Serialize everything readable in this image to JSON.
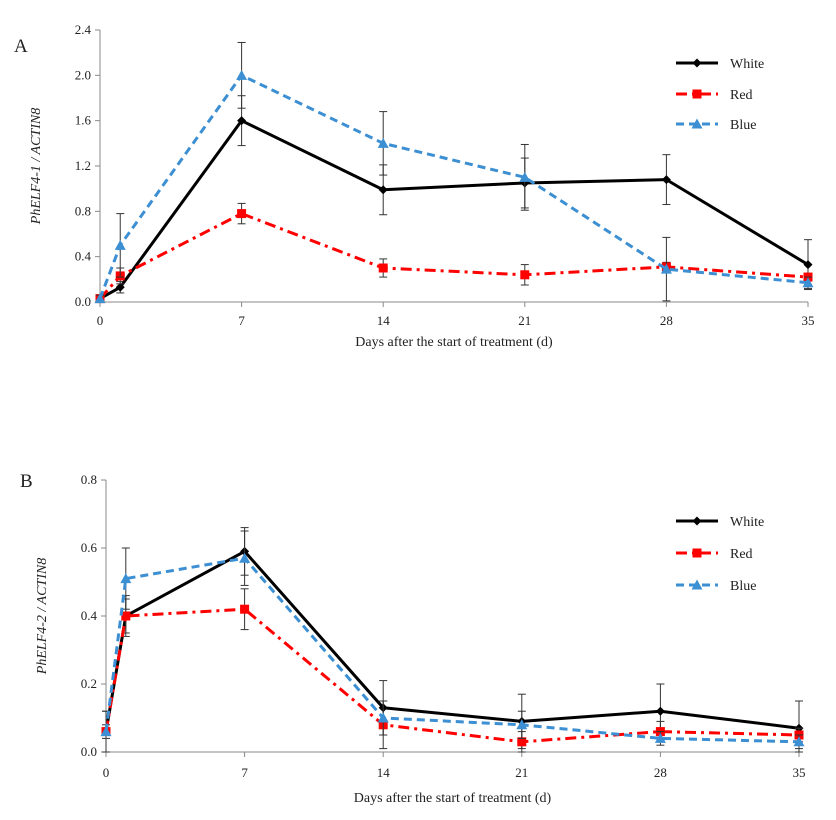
{
  "chart_data": [
    {
      "type": "line",
      "panel_label": "A",
      "xlabel": "Days after the start of treatment (d)",
      "ylabel": "PhELF4-1 / ACTIN8",
      "x": [
        0,
        1,
        7,
        14,
        21,
        28,
        35
      ],
      "xticks": [
        0,
        7,
        14,
        21,
        28,
        35
      ],
      "xtick_labels": [
        "0",
        "7",
        "14",
        "21",
        "28",
        "35"
      ],
      "xlim": [
        0,
        35
      ],
      "ylim": [
        0,
        2.4
      ],
      "yticks": [
        0.0,
        0.4,
        0.8,
        1.2,
        1.6,
        2.0,
        2.4
      ],
      "ytick_labels": [
        "0.0",
        "0.4",
        "0.8",
        "1.2",
        "1.6",
        "2.0",
        "2.4"
      ],
      "legend_position": "top-right",
      "series": [
        {
          "name": "White",
          "color": "#000000",
          "marker": "diamond",
          "dash": "solid",
          "values": [
            0.03,
            0.13,
            1.6,
            0.99,
            1.05,
            1.08,
            0.33
          ],
          "errors": [
            0.03,
            0.05,
            0.22,
            0.22,
            0.22,
            0.22,
            0.22
          ]
        },
        {
          "name": "Red",
          "color": "#ff0000",
          "marker": "square",
          "dash": "dashdot",
          "values": [
            0.03,
            0.23,
            0.78,
            0.3,
            0.24,
            0.31,
            0.22
          ],
          "errors": [
            0.02,
            0.07,
            0.09,
            0.08,
            0.09,
            0.04,
            0.03
          ]
        },
        {
          "name": "Blue",
          "color": "#3b8fd2",
          "marker": "triangle",
          "dash": "dashed",
          "values": [
            0.03,
            0.5,
            2.0,
            1.4,
            1.1,
            0.29,
            0.17
          ],
          "errors": [
            0.03,
            0.28,
            0.29,
            0.28,
            0.29,
            0.28,
            0.05
          ]
        }
      ]
    },
    {
      "type": "line",
      "panel_label": "B",
      "xlabel": "Days after the start of treatment (d)",
      "ylabel": "PhELF4-2 / ACTIN8",
      "x": [
        0,
        1,
        7,
        14,
        21,
        28,
        35
      ],
      "xticks": [
        0,
        7,
        14,
        21,
        28,
        35
      ],
      "xtick_labels": [
        "0",
        "7",
        "14",
        "21",
        "28",
        "35"
      ],
      "xlim": [
        0,
        35
      ],
      "ylim": [
        0,
        0.8
      ],
      "yticks": [
        0.0,
        0.2,
        0.4,
        0.6,
        0.8
      ],
      "ytick_labels": [
        "0.0",
        "0.2",
        "0.4",
        "0.6",
        "0.8"
      ],
      "legend_position": "top-right",
      "series": [
        {
          "name": "White",
          "color": "#000000",
          "marker": "diamond",
          "dash": "solid",
          "values": [
            0.06,
            0.4,
            0.59,
            0.13,
            0.09,
            0.12,
            0.07
          ],
          "errors": [
            0.06,
            0.06,
            0.07,
            0.08,
            0.08,
            0.08,
            0.08
          ]
        },
        {
          "name": "Red",
          "color": "#ff0000",
          "marker": "square",
          "dash": "dashdot",
          "values": [
            0.06,
            0.4,
            0.42,
            0.08,
            0.03,
            0.06,
            0.05
          ],
          "errors": [
            0.02,
            0.05,
            0.06,
            0.07,
            0.03,
            0.03,
            0.02
          ]
        },
        {
          "name": "Blue",
          "color": "#3b8fd2",
          "marker": "triangle",
          "dash": "dashed",
          "values": [
            0.06,
            0.51,
            0.57,
            0.1,
            0.08,
            0.04,
            0.03
          ],
          "errors": [
            0.06,
            0.09,
            0.08,
            0.05,
            0.04,
            0.02,
            0.02
          ]
        }
      ]
    }
  ]
}
